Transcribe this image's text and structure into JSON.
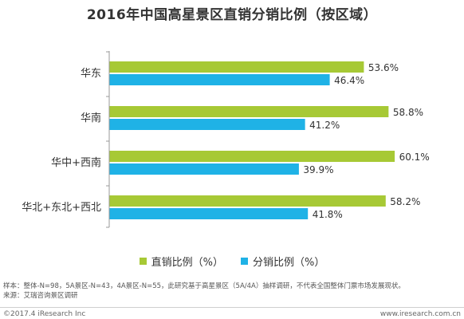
{
  "chart_data": {
    "type": "bar",
    "orientation": "horizontal",
    "title": "2016年中国高星景区直销分销比例（按区域）",
    "categories": [
      "华东",
      "华南",
      "华中+西南",
      "华北+东北+西北"
    ],
    "series": [
      {
        "name": "直销比例（%）",
        "color": "#a7c935",
        "values": [
          53.6,
          58.8,
          60.1,
          58.2
        ],
        "labels": [
          "53.6%",
          "58.8%",
          "60.1%",
          "58.2%"
        ]
      },
      {
        "name": "分销比例（%）",
        "color": "#1fb2e6",
        "values": [
          46.4,
          41.2,
          39.9,
          41.8
        ],
        "labels": [
          "46.4%",
          "41.2%",
          "39.9%",
          "41.8%"
        ]
      }
    ],
    "xlim": [
      0,
      70
    ],
    "grid": false,
    "legend_position": "bottom"
  },
  "notes": {
    "sample": "样本：整体-N=98，5A景区-N=43，4A景区-N=55，此研究基于高星景区（5A/4A）抽样调研，不代表全国整体门票市场发展现状。",
    "source": "来源：艾瑞咨询景区调研"
  },
  "footer": {
    "copyright": "©2017.4 iResearch Inc",
    "website": "www.iresearch.com.cn"
  },
  "colors": {
    "axis": "#999999",
    "text": "#333333"
  }
}
